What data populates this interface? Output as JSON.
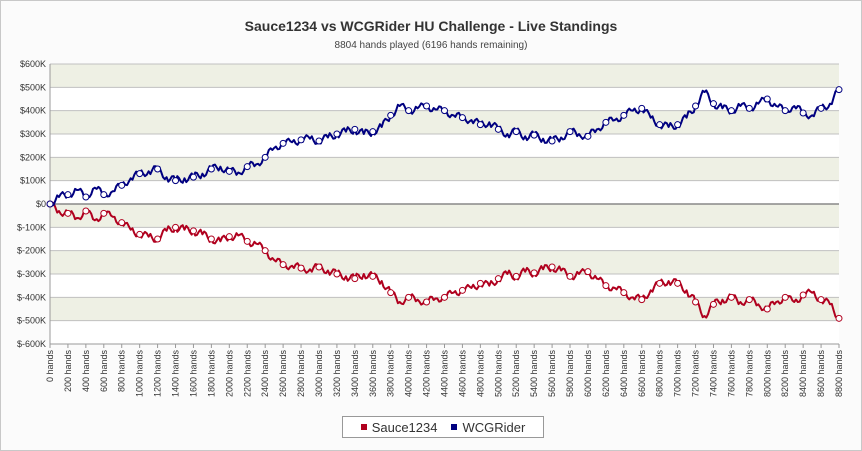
{
  "chart_data": {
    "type": "line",
    "title": "Sauce1234 vs WCGRider HU Challenge - Live Standings",
    "subtitle": "8804 hands played (6196 hands remaining)",
    "xlabel": "",
    "ylabel": "",
    "xlim": [
      0,
      8800
    ],
    "ylim": [
      -600000,
      600000
    ],
    "y_ticks": [
      "$-600K",
      "$-500K",
      "$-400K",
      "$-300K",
      "$-200K",
      "$-100K",
      "$0",
      "$100K",
      "$200K",
      "$300K",
      "$400K",
      "$500K",
      "$600K"
    ],
    "x_ticks": [
      "0 hands",
      "200 hands",
      "400 hands",
      "600 hands",
      "800 hands",
      "1000 hands",
      "1200 hands",
      "1400 hands",
      "1600 hands",
      "1800 hands",
      "2000 hands",
      "2200 hands",
      "2400 hands",
      "2600 hands",
      "2800 hands",
      "3000 hands",
      "3200 hands",
      "3400 hands",
      "3600 hands",
      "3800 hands",
      "4000 hands",
      "4200 hands",
      "4400 hands",
      "4600 hands",
      "4800 hands",
      "5000 hands",
      "5200 hands",
      "5400 hands",
      "5600 hands",
      "5800 hands",
      "6000 hands",
      "6200 hands",
      "6400 hands",
      "6600 hands",
      "6800 hands",
      "7000 hands",
      "7200 hands",
      "7400 hands",
      "7600 hands",
      "7800 hands",
      "8000 hands",
      "8200 hands",
      "8400 hands",
      "8600 hands",
      "8800 hands"
    ],
    "x": [
      0,
      100,
      200,
      300,
      400,
      500,
      600,
      700,
      800,
      900,
      1000,
      1100,
      1200,
      1300,
      1400,
      1500,
      1600,
      1700,
      1800,
      1900,
      2000,
      2100,
      2200,
      2300,
      2400,
      2500,
      2600,
      2700,
      2800,
      2900,
      3000,
      3100,
      3200,
      3300,
      3400,
      3500,
      3600,
      3700,
      3800,
      3900,
      4000,
      4100,
      4200,
      4300,
      4400,
      4500,
      4600,
      4700,
      4800,
      4900,
      5000,
      5100,
      5200,
      5300,
      5400,
      5500,
      5600,
      5700,
      5800,
      5900,
      6000,
      6100,
      6200,
      6300,
      6400,
      6500,
      6600,
      6700,
      6800,
      6900,
      7000,
      7100,
      7200,
      7300,
      7400,
      7500,
      7600,
      7700,
      7800,
      7900,
      8000,
      8100,
      8200,
      8300,
      8400,
      8500,
      8600,
      8700,
      8800
    ],
    "series": [
      {
        "name": "Sauce1234",
        "color": "#b0001e",
        "values": [
          0,
          -30000,
          -40000,
          -60000,
          -30000,
          -70000,
          -40000,
          -55000,
          -80000,
          -110000,
          -130000,
          -140000,
          -150000,
          -115000,
          -100000,
          -110000,
          -115000,
          -130000,
          -150000,
          -160000,
          -140000,
          -135000,
          -160000,
          -170000,
          -200000,
          -240000,
          -260000,
          -265000,
          -275000,
          -280000,
          -270000,
          -285000,
          -300000,
          -310000,
          -320000,
          -300000,
          -310000,
          -330000,
          -380000,
          -420000,
          -400000,
          -410000,
          -420000,
          -405000,
          -400000,
          -380000,
          -370000,
          -360000,
          -340000,
          -350000,
          -320000,
          -300000,
          -310000,
          -290000,
          -295000,
          -280000,
          -270000,
          -285000,
          -310000,
          -300000,
          -290000,
          -320000,
          -350000,
          -360000,
          -380000,
          -400000,
          -410000,
          -370000,
          -340000,
          -330000,
          -340000,
          -370000,
          -420000,
          -480000,
          -430000,
          -410000,
          -400000,
          -420000,
          -410000,
          -430000,
          -450000,
          -420000,
          -400000,
          -420000,
          -390000,
          -380000,
          -410000,
          -430000,
          -490000
        ]
      },
      {
        "name": "WCGRider",
        "color": "#000080",
        "values": [
          0,
          30000,
          40000,
          60000,
          30000,
          70000,
          40000,
          55000,
          80000,
          110000,
          130000,
          140000,
          150000,
          115000,
          100000,
          110000,
          115000,
          130000,
          150000,
          160000,
          140000,
          135000,
          160000,
          170000,
          200000,
          240000,
          260000,
          265000,
          275000,
          280000,
          270000,
          285000,
          300000,
          310000,
          320000,
          300000,
          310000,
          330000,
          380000,
          420000,
          400000,
          410000,
          420000,
          405000,
          400000,
          380000,
          370000,
          360000,
          340000,
          350000,
          320000,
          300000,
          310000,
          290000,
          295000,
          280000,
          270000,
          285000,
          310000,
          300000,
          290000,
          320000,
          350000,
          360000,
          380000,
          400000,
          410000,
          370000,
          340000,
          330000,
          340000,
          370000,
          420000,
          480000,
          430000,
          410000,
          400000,
          420000,
          410000,
          430000,
          450000,
          420000,
          400000,
          420000,
          390000,
          380000,
          410000,
          430000,
          490000
        ]
      }
    ],
    "bands_color": "#eef0e4",
    "grid": true,
    "legend": "bottom-center"
  },
  "legend": {
    "items": [
      {
        "label": "Sauce1234",
        "color": "#b0001e"
      },
      {
        "label": "WCGRider",
        "color": "#000080"
      }
    ]
  }
}
